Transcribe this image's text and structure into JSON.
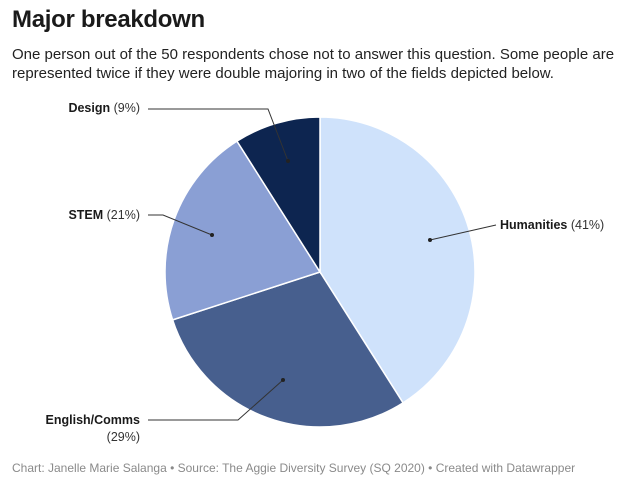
{
  "title": "Major breakdown",
  "subtitle": "One person out of the 50 respondents chose not to answer this question. Some people are represented twice if they were double majoring in two of the fields depicted below.",
  "footer": "Chart: Janelle Marie Salanga • Source: The Aggie Diversity Survey (SQ 2020) • Created with Datawrapper",
  "chart_data": {
    "type": "pie",
    "slices": [
      {
        "label": "Humanities",
        "pct_label": "(41%)",
        "value": 41,
        "color": "#cfe2fb"
      },
      {
        "label": "English/Comms",
        "pct_label": "(29%)",
        "value": 29,
        "color": "#475f8e"
      },
      {
        "label": "STEM",
        "pct_label": "(21%)",
        "value": 21,
        "color": "#8a9fd4"
      },
      {
        "label": "Design",
        "pct_label": "(9%)",
        "value": 9,
        "color": "#0d2550"
      }
    ]
  }
}
